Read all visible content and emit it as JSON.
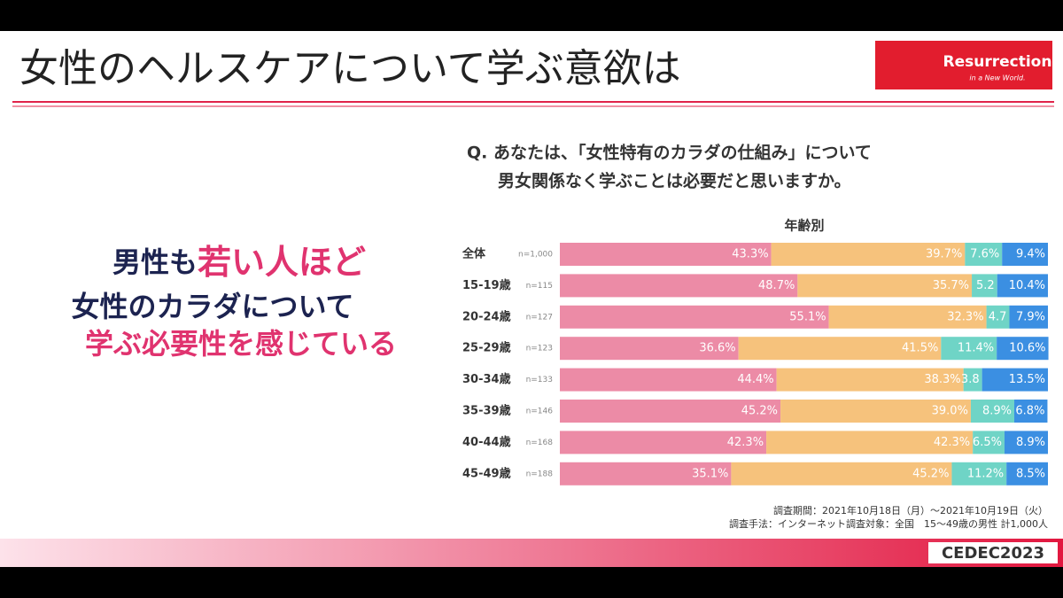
{
  "slide": {
    "title": "女性のヘルスケアについて学ぶ意欲は",
    "logo": {
      "name": "Resurrection",
      "tagline": "in a New World."
    },
    "headline": {
      "line1_a": "男性も",
      "line1_b": "若い人ほど",
      "line2": "女性のカラダについて",
      "line3": "学ぶ必要性を感じている"
    },
    "notes": [
      "調査期間：2021年10月18日（月）～2021年10月19日（火）",
      "調査手法：インターネット調査対象：全国　15～49歳の男性 計1,000人"
    ],
    "event": "CEDEC2023"
  },
  "chart_data": {
    "type": "stacked-bar-horizontal",
    "question": [
      "Q. あなたは、「女性特有のカラダの仕組み」について",
      "男女関係なく学ぶことは必要だと思いますか。"
    ],
    "title": "年齢別",
    "categories": [
      "全体",
      "15-19歳",
      "20-24歳",
      "25-29歳",
      "30-34歳",
      "35-39歳",
      "40-44歳",
      "45-49歳"
    ],
    "sample_sizes": [
      "n=1,000",
      "n=115",
      "n=127",
      "n=123",
      "n=133",
      "n=146",
      "n=168",
      "n=188"
    ],
    "xlim": [
      0,
      100
    ],
    "series": [
      {
        "color": "#ec8ba6",
        "values": [
          43.3,
          48.7,
          55.1,
          36.6,
          44.4,
          45.2,
          42.3,
          35.1
        ],
        "value_labels": [
          "43.3%",
          "48.7%",
          "55.1%",
          "36.6%",
          "44.4%",
          "45.2%",
          "42.3%",
          "35.1%"
        ]
      },
      {
        "color": "#f6c27c",
        "values": [
          39.7,
          35.7,
          32.3,
          41.5,
          38.3,
          39.0,
          42.3,
          45.2
        ],
        "value_labels": [
          "39.7%",
          "35.7%",
          "32.3%",
          "41.5%",
          "38.3%",
          "39.0%",
          "42.3%",
          "45.2%"
        ]
      },
      {
        "color": "#6fd4c6",
        "values": [
          7.6,
          5.2,
          4.7,
          11.4,
          3.8,
          8.9,
          6.5,
          11.2
        ],
        "value_labels": [
          "7.6%",
          "5.2",
          "4.7",
          "11.4%",
          "3.8",
          "8.9%",
          "6.5%",
          "11.2%"
        ]
      },
      {
        "color": "#3b8fe2",
        "values": [
          9.4,
          10.4,
          7.9,
          10.6,
          13.5,
          6.8,
          8.9,
          8.5
        ],
        "value_labels": [
          "9.4%",
          "10.4%",
          "7.9%",
          "10.6%",
          "13.5%",
          "6.8%",
          "8.9%",
          "8.5%"
        ]
      }
    ]
  }
}
